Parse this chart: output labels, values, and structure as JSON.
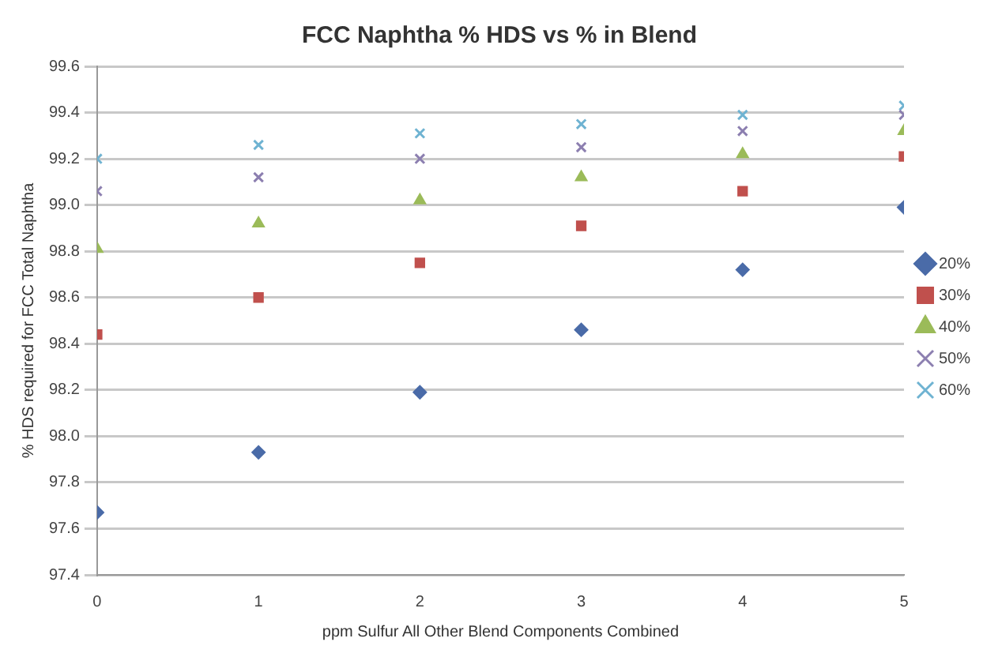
{
  "chart_data": {
    "type": "scatter",
    "title": "FCC Naphtha % HDS vs % in Blend",
    "xlabel": "ppm Sulfur All Other Blend Components Combined",
    "ylabel": "% HDS required for FCC Total Naphtha",
    "x": [
      0,
      1,
      2,
      3,
      4,
      5
    ],
    "xlim": [
      0,
      5
    ],
    "xticks": [
      0,
      1,
      2,
      3,
      4,
      5
    ],
    "ylim": [
      97.4,
      99.6
    ],
    "yticks": [
      97.4,
      97.6,
      97.8,
      {
        "value": 98,
        "label": "98.0"
      },
      98.2,
      98.4,
      98.6,
      98.8,
      {
        "value": 99,
        "label": "99.0"
      },
      99.2,
      99.4,
      99.6
    ],
    "grid": "y",
    "legend": "right",
    "series": [
      {
        "name": "20%",
        "color": "#4a6ba8",
        "marker": "diamond",
        "values": [
          97.67,
          97.93,
          98.19,
          98.46,
          98.72,
          98.99
        ]
      },
      {
        "name": "30%",
        "color": "#c0504d",
        "marker": "square",
        "values": [
          98.44,
          98.6,
          98.75,
          98.91,
          99.06,
          99.21
        ]
      },
      {
        "name": "40%",
        "color": "#9bbb59",
        "marker": "triangle",
        "values": [
          98.81,
          98.92,
          99.02,
          99.12,
          99.22,
          99.32
        ]
      },
      {
        "name": "50%",
        "color": "#8c7fb0",
        "marker": "cross",
        "values": [
          99.06,
          99.12,
          99.2,
          99.25,
          99.32,
          99.39
        ]
      },
      {
        "name": "60%",
        "color": "#6fb3d2",
        "marker": "cross",
        "values": [
          99.2,
          99.26,
          99.31,
          99.35,
          99.39,
          99.43
        ]
      }
    ]
  }
}
